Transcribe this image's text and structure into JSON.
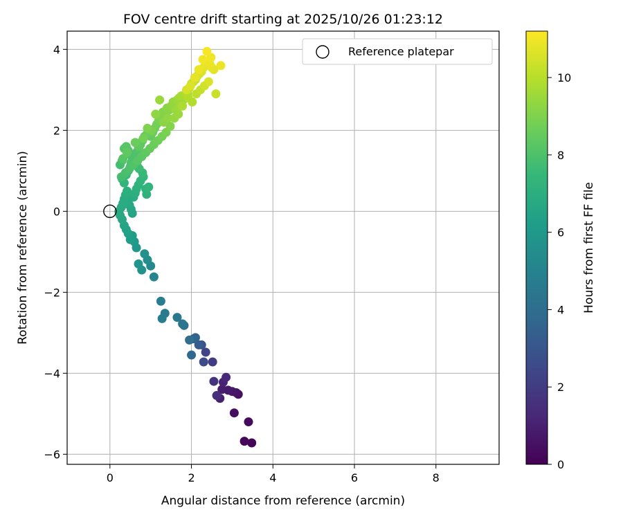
{
  "chart_data": {
    "type": "scatter",
    "title": "FOV centre drift starting at 2025/10/26 01:23:12",
    "xlabel": "Angular distance from reference (arcmin)",
    "ylabel": "Rotation from reference (arcmin)",
    "xlim": [
      -1.05,
      9.55
    ],
    "ylim": [
      -6.25,
      4.45
    ],
    "xticks": [
      0,
      2,
      4,
      6,
      8
    ],
    "yticks": [
      -6,
      -4,
      -2,
      0,
      2,
      4
    ],
    "xtick_labels": [
      "0",
      "2",
      "4",
      "6",
      "8"
    ],
    "ytick_labels": [
      "−6",
      "−4",
      "−2",
      "0",
      "2",
      "4"
    ],
    "grid": true,
    "legend": {
      "position": "upper-right",
      "entries": [
        "Reference platepar"
      ]
    },
    "reference_point": {
      "x": 0,
      "y": 0
    },
    "colorbar": {
      "label": "Hours from first FF file",
      "min": 0,
      "max": 11.2,
      "ticks": [
        0,
        2,
        4,
        6,
        8,
        10
      ],
      "tick_labels": [
        "0",
        "2",
        "4",
        "6",
        "8",
        "10"
      ],
      "colormap": "viridis",
      "stops": [
        "#440154",
        "#482878",
        "#3e4989",
        "#31688e",
        "#26828e",
        "#1f9e89",
        "#35b779",
        "#6ece58",
        "#b5de2b",
        "#fde725"
      ]
    },
    "series": [
      {
        "x": [
          3.48,
          3.3,
          3.4,
          3.05,
          3.15,
          3.1,
          3.0,
          2.9,
          2.75,
          2.7,
          2.78,
          2.85,
          2.62,
          2.55,
          2.52,
          2.35,
          2.3,
          2.25,
          2.18,
          2.05,
          2.1,
          2.0,
          1.95,
          1.82,
          1.78,
          1.65,
          1.35,
          1.28,
          1.25,
          1.08,
          1.0,
          0.92,
          0.85,
          0.78,
          0.7,
          0.65,
          0.6,
          0.55,
          0.5,
          0.45,
          0.4,
          0.35,
          0.3,
          0.25,
          0.22,
          0.28,
          0.32,
          0.35,
          0.38,
          0.42,
          0.45,
          0.48,
          0.52,
          0.55,
          0.58,
          0.62,
          0.65,
          0.7,
          0.75,
          0.82,
          0.88,
          0.95,
          0.9,
          0.8,
          0.72,
          0.68,
          0.6,
          0.55,
          0.5,
          0.45,
          0.4,
          0.35,
          0.3,
          0.25,
          0.3,
          0.35,
          0.4,
          0.45,
          0.5,
          0.55,
          0.6,
          0.65,
          0.7,
          0.75,
          0.8,
          0.85,
          0.9,
          0.95,
          1.0,
          1.05,
          1.1,
          1.15,
          1.2,
          1.25,
          1.3,
          1.35,
          1.4,
          1.45,
          1.5,
          1.55,
          1.6,
          1.65,
          1.7,
          1.75,
          1.8,
          1.85,
          1.9,
          1.95,
          2.0,
          2.05,
          2.1,
          2.15,
          2.2,
          2.25,
          2.3,
          2.35,
          2.4,
          2.45,
          2.5,
          2.55,
          2.6,
          2.48,
          2.38,
          2.28,
          2.18,
          2.08,
          1.98,
          1.88,
          1.78,
          1.68,
          1.58,
          1.48,
          1.38,
          1.28,
          1.18,
          1.08,
          0.98,
          0.88,
          0.78,
          0.68,
          0.58,
          0.48,
          0.38,
          0.28,
          1.22,
          1.12,
          0.92,
          0.82,
          0.62,
          0.42,
          0.32,
          0.52,
          0.72,
          1.02,
          1.32,
          1.42,
          1.62,
          1.72,
          1.92,
          2.22,
          2.32,
          2.42,
          2.12,
          2.02,
          2.72
        ],
        "y": [
          -5.72,
          -5.68,
          -5.2,
          -4.98,
          -4.52,
          -4.48,
          -4.45,
          -4.42,
          -4.4,
          -4.62,
          -4.22,
          -4.1,
          -4.55,
          -4.2,
          -3.72,
          -3.48,
          -3.72,
          -3.3,
          -3.3,
          -3.15,
          -3.12,
          -3.55,
          -3.18,
          -2.82,
          -2.78,
          -2.62,
          -2.52,
          -2.65,
          -2.22,
          -1.62,
          -1.35,
          -1.2,
          -1.05,
          -1.45,
          -1.3,
          -0.9,
          -0.75,
          -0.6,
          -0.7,
          -0.55,
          -0.45,
          -0.35,
          -0.2,
          -0.1,
          0.0,
          0.1,
          0.2,
          0.3,
          0.4,
          0.5,
          0.25,
          0.15,
          0.05,
          -0.05,
          0.35,
          0.45,
          0.55,
          0.65,
          0.75,
          0.85,
          0.55,
          0.6,
          0.42,
          0.95,
          1.05,
          1.1,
          1.2,
          1.3,
          1.4,
          1.5,
          1.6,
          1.55,
          1.25,
          1.15,
          0.8,
          0.7,
          0.9,
          1.0,
          1.1,
          1.2,
          1.35,
          1.45,
          1.55,
          1.65,
          1.75,
          1.85,
          1.9,
          1.95,
          1.85,
          1.95,
          2.05,
          2.15,
          2.25,
          2.35,
          2.45,
          2.4,
          2.55,
          2.5,
          2.6,
          2.7,
          2.65,
          2.75,
          2.8,
          2.85,
          2.75,
          2.9,
          2.95,
          3.05,
          3.15,
          3.2,
          3.25,
          3.35,
          3.4,
          3.45,
          3.55,
          3.6,
          3.7,
          3.65,
          3.55,
          3.5,
          2.9,
          3.8,
          3.95,
          3.75,
          3.5,
          3.3,
          3.1,
          3.0,
          2.6,
          2.4,
          2.3,
          2.1,
          1.95,
          1.85,
          1.75,
          1.65,
          1.55,
          1.45,
          1.35,
          1.25,
          1.15,
          1.05,
          0.95,
          0.85,
          2.75,
          2.4,
          2.05,
          1.8,
          1.7,
          1.45,
          1.3,
          1.2,
          1.6,
          2.0,
          2.2,
          2.3,
          2.5,
          2.6,
          2.8,
          3.0,
          3.1,
          3.2,
          2.9,
          2.7,
          3.6
        ],
        "c": [
          0.1,
          0.2,
          0.3,
          0.4,
          0.5,
          0.6,
          0.7,
          0.8,
          0.9,
          1.0,
          1.1,
          1.3,
          1.5,
          1.7,
          2.0,
          2.3,
          2.6,
          2.9,
          3.2,
          3.4,
          3.6,
          3.8,
          4.0,
          4.2,
          4.4,
          4.5,
          4.6,
          4.7,
          4.8,
          5.1,
          5.3,
          5.5,
          5.6,
          5.7,
          5.8,
          5.9,
          6.0,
          6.1,
          6.2,
          6.3,
          6.4,
          6.5,
          6.6,
          6.7,
          6.75,
          6.8,
          6.85,
          6.9,
          6.95,
          7.0,
          6.8,
          6.7,
          6.6,
          6.5,
          6.9,
          7.0,
          7.1,
          7.2,
          7.3,
          7.4,
          7.2,
          7.3,
          7.1,
          7.5,
          7.6,
          7.7,
          7.8,
          7.9,
          8.0,
          8.1,
          8.2,
          8.15,
          7.9,
          7.8,
          7.4,
          7.3,
          7.5,
          7.6,
          7.7,
          7.8,
          7.9,
          8.0,
          8.1,
          8.2,
          8.3,
          8.4,
          8.5,
          8.6,
          8.5,
          8.6,
          8.7,
          8.8,
          8.9,
          9.0,
          9.1,
          9.05,
          9.2,
          9.15,
          9.3,
          9.4,
          9.35,
          9.5,
          9.6,
          9.7,
          9.6,
          9.8,
          9.9,
          10.0,
          10.1,
          10.2,
          10.3,
          10.4,
          10.5,
          10.6,
          10.7,
          10.8,
          10.9,
          10.85,
          10.8,
          10.75,
          10.3,
          11.0,
          11.1,
          11.0,
          10.9,
          10.8,
          10.6,
          10.5,
          9.8,
          9.5,
          9.4,
          9.1,
          8.9,
          8.8,
          8.7,
          8.6,
          8.5,
          8.4,
          8.3,
          8.2,
          8.1,
          8.0,
          7.9,
          7.8,
          9.5,
          9.3,
          9.0,
          8.8,
          8.6,
          8.4,
          8.2,
          8.0,
          8.4,
          8.9,
          9.2,
          9.3,
          9.5,
          9.6,
          9.9,
          10.2,
          10.4,
          10.6,
          10.1,
          9.9,
          10.9
        ]
      }
    ]
  }
}
